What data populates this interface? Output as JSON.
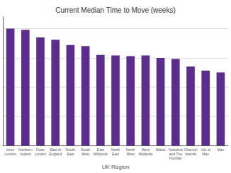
{
  "chart_data": {
    "type": "bar",
    "title": "Current Median Time to Move (weeks)",
    "xlabel": "UK Region",
    "categories": [
      "Inner\nLondon",
      "Northern\nIreland",
      "Outer\nLondon",
      "East of\nEngland",
      "South\nEast",
      "South\nWest",
      "East\nMidlands",
      "North\nEast",
      "North\nWest",
      "West\nMidlands",
      "Wales",
      "Yorkshire\nand The\nHumber",
      "Channel\nIslands",
      "Isle of\nMan",
      "Man"
    ],
    "values": [
      20.0,
      19.8,
      18.5,
      18.1,
      17.2,
      17.0,
      15.5,
      15.4,
      15.3,
      15.4,
      15.0,
      14.8,
      13.5,
      12.8,
      12.5
    ],
    "color": "#5b2d8e",
    "ylim": [
      0,
      22
    ],
    "yticks": [
      0,
      5,
      10,
      15,
      20
    ],
    "grid": true,
    "tick_labels": "x"
  }
}
